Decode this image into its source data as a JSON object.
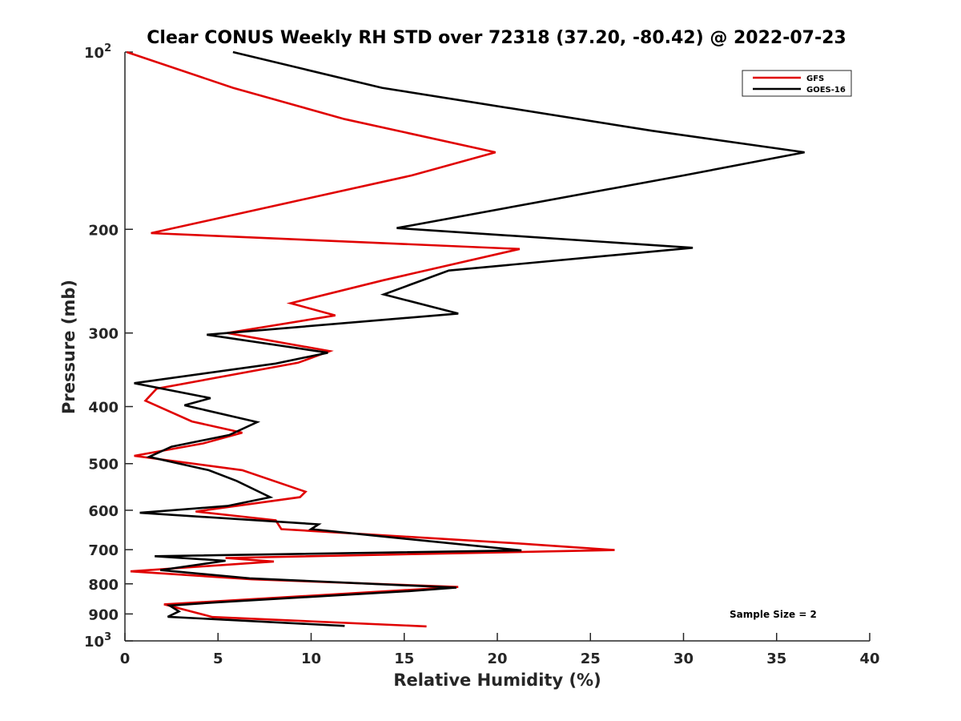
{
  "chart_data": {
    "type": "line",
    "title": "Clear CONUS Weekly RH STD over 72318 (37.20, -80.42) @ 2022-07-23",
    "xlabel": "Relative Humidity (%)",
    "ylabel": "Pressure (mb)",
    "xlim": [
      0,
      40
    ],
    "ylim": [
      100,
      1000
    ],
    "y_scale": "log",
    "y_reversed": true,
    "x_ticks": [
      "0",
      "5",
      "10",
      "15",
      "20",
      "25",
      "30",
      "35",
      "40"
    ],
    "x_tick_values": [
      0,
      5,
      10,
      15,
      20,
      25,
      30,
      35,
      40
    ],
    "y_ticks": [
      {
        "value": 100,
        "label": "10",
        "sup": "2"
      },
      {
        "value": 200,
        "label": "200",
        "sup": ""
      },
      {
        "value": 300,
        "label": "300",
        "sup": ""
      },
      {
        "value": 400,
        "label": "400",
        "sup": ""
      },
      {
        "value": 500,
        "label": "500",
        "sup": ""
      },
      {
        "value": 600,
        "label": "600",
        "sup": ""
      },
      {
        "value": 700,
        "label": "700",
        "sup": ""
      },
      {
        "value": 800,
        "label": "800",
        "sup": ""
      },
      {
        "value": 900,
        "label": "900",
        "sup": ""
      },
      {
        "value": 1000,
        "label": "10",
        "sup": "3"
      }
    ],
    "grid": false,
    "legend_position": "top-right",
    "annotation": "Sample Size = 2",
    "series": [
      {
        "name": "GFS",
        "color": "#e00000",
        "points": [
          [
            0.1,
            100
          ],
          [
            5.8,
            115
          ],
          [
            11.8,
            130
          ],
          [
            19.9,
            148
          ],
          [
            15.4,
            162
          ],
          [
            1.4,
            203
          ],
          [
            21.2,
            216
          ],
          [
            13.9,
            244
          ],
          [
            8.9,
            267
          ],
          [
            11.3,
            280
          ],
          [
            5.5,
            300
          ],
          [
            11.0,
            322
          ],
          [
            9.3,
            337
          ],
          [
            1.7,
            373
          ],
          [
            1.1,
            391
          ],
          [
            3.6,
            424
          ],
          [
            6.3,
            443
          ],
          [
            4.2,
            462
          ],
          [
            0.5,
            485
          ],
          [
            6.3,
            513
          ],
          [
            9.7,
            558
          ],
          [
            9.4,
            570
          ],
          [
            3.8,
            603
          ],
          [
            8.1,
            624
          ],
          [
            8.4,
            646
          ],
          [
            21.1,
            683
          ],
          [
            26.3,
            701
          ],
          [
            5.4,
            723
          ],
          [
            8.0,
            733
          ],
          [
            0.3,
            762
          ],
          [
            6.8,
            786
          ],
          [
            17.9,
            810
          ],
          [
            2.1,
            867
          ],
          [
            4.7,
            911
          ],
          [
            16.2,
            945
          ]
        ]
      },
      {
        "name": "GOES-16",
        "color": "#000000",
        "points": [
          [
            5.8,
            100
          ],
          [
            13.8,
            115
          ],
          [
            28.3,
            136
          ],
          [
            36.5,
            148
          ],
          [
            30.0,
            162
          ],
          [
            14.6,
            199
          ],
          [
            30.5,
            215
          ],
          [
            17.4,
            235
          ],
          [
            13.9,
            258
          ],
          [
            17.9,
            278
          ],
          [
            4.4,
            302
          ],
          [
            10.9,
            324
          ],
          [
            8.1,
            338
          ],
          [
            0.5,
            365
          ],
          [
            4.6,
            387
          ],
          [
            3.2,
            398
          ],
          [
            7.1,
            425
          ],
          [
            5.6,
            447
          ],
          [
            2.5,
            468
          ],
          [
            1.3,
            487
          ],
          [
            4.5,
            513
          ],
          [
            6.0,
            535
          ],
          [
            7.8,
            570
          ],
          [
            5.5,
            590
          ],
          [
            0.8,
            606
          ],
          [
            10.4,
            634
          ],
          [
            10.0,
            646
          ],
          [
            13.7,
            664
          ],
          [
            21.3,
            702
          ],
          [
            1.6,
            718
          ],
          [
            5.4,
            731
          ],
          [
            1.9,
            758
          ],
          [
            6.7,
            783
          ],
          [
            17.8,
            812
          ],
          [
            15.3,
            823
          ],
          [
            4.9,
            860
          ],
          [
            2.4,
            871
          ],
          [
            2.9,
            891
          ],
          [
            2.3,
            910
          ],
          [
            11.8,
            943
          ]
        ]
      }
    ]
  }
}
